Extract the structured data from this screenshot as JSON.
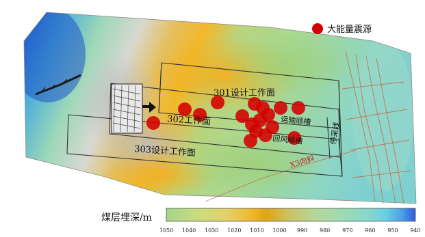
{
  "legend": {
    "marker_label": "大能量震源",
    "marker_color": "#d40000"
  },
  "labels": {
    "face_301": "301设计工作面",
    "face_302": "302工作面",
    "face_303": "303设计工作面",
    "transport_roadway": "运输顺槽",
    "return_roadway": "回风顺槽",
    "stop_line": "停采线",
    "x3_incline": "X3向斜"
  },
  "colorbar": {
    "title": "煤层埋深/m",
    "ticks": [
      "1050",
      "1040",
      "1030",
      "1020",
      "1010",
      "1000",
      "990",
      "980",
      "970",
      "960",
      "950",
      "940"
    ],
    "colors": [
      "#a6d48a",
      "#c8dd80",
      "#e2d26a",
      "#f0b830",
      "#e0a418",
      "#c9c466",
      "#b5d89a",
      "#a0dbb0",
      "#8ad8c8",
      "#6ad0e4",
      "#4a9ce8",
      "#2f5ad8"
    ]
  },
  "events": [
    {
      "lon": 0.0,
      "lat": 0.0
    }
  ]
}
